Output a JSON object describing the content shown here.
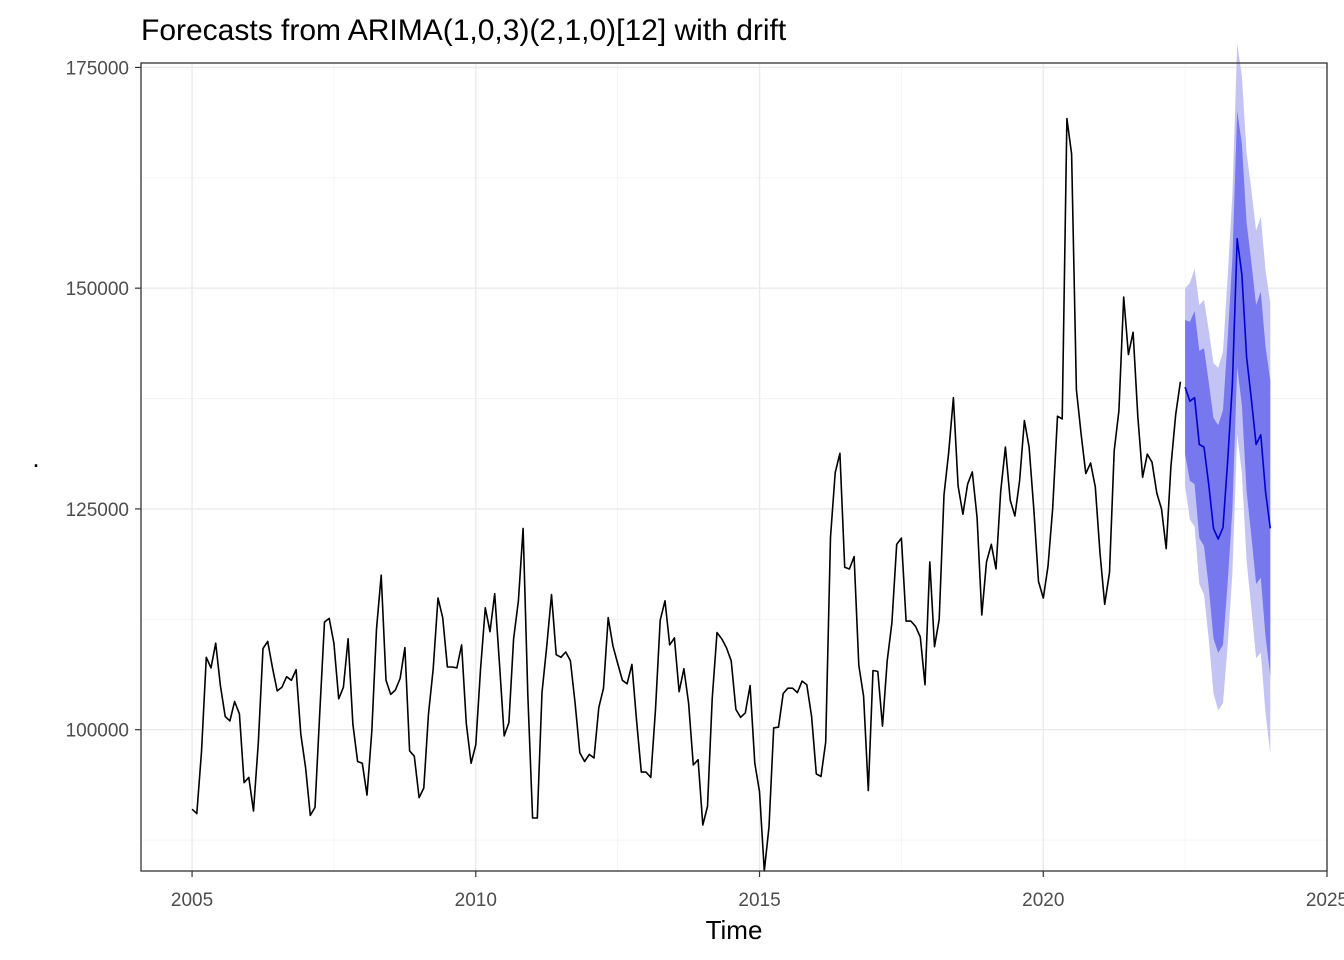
{
  "chart_data": {
    "type": "line",
    "title": "Forecasts from ARIMA(1,0,3)(2,1,0)[12] with drift",
    "xlabel": "Time",
    "ylabel": ".",
    "xlim": [
      2004.1,
      2025
    ],
    "ylim": [
      84000,
      175500
    ],
    "x_ticks": [
      2005,
      2010,
      2015,
      2020,
      2025
    ],
    "x_tick_labels": [
      "2005",
      "2010",
      "2015",
      "2020",
      "2025"
    ],
    "y_ticks": [
      100000,
      125000,
      150000,
      175000
    ],
    "y_tick_labels": [
      "100000",
      "125000",
      "150000",
      "175000"
    ],
    "grid": true,
    "colors": {
      "observed": "#000000",
      "forecast": "#0000cc",
      "band80": "#7777ee",
      "band95": "#c4c4f4"
    },
    "observed": {
      "start": 2005.0,
      "frequency": 12,
      "values": [
        91000,
        90500,
        97500,
        108200,
        107000,
        109800,
        105000,
        101500,
        101000,
        103200,
        101800,
        94000,
        94600,
        90800,
        98500,
        109200,
        110000,
        107000,
        104400,
        104800,
        106000,
        105600,
        106800,
        99500,
        95700,
        90300,
        91200,
        102000,
        112200,
        112600,
        109800,
        103500,
        104800,
        110300,
        100600,
        96400,
        96200,
        92600,
        99800,
        111400,
        117500,
        105600,
        104000,
        104500,
        105800,
        109300,
        97600,
        97000,
        92300,
        93400,
        101800,
        106900,
        114900,
        112700,
        107100,
        107100,
        107000,
        109600,
        100700,
        96200,
        98300,
        106800,
        113800,
        111100,
        115400,
        107600,
        99300,
        100800,
        110300,
        114600,
        122800,
        104000,
        90000,
        90000,
        104200,
        109400,
        115300,
        108500,
        108200,
        108800,
        107800,
        103000,
        97400,
        96400,
        97200,
        96800,
        102500,
        104700,
        112700,
        109500,
        107500,
        105600,
        105200,
        107400,
        101000,
        95200,
        95200,
        94600,
        102300,
        112400,
        114600,
        109600,
        110400,
        104300,
        106900,
        103000,
        96000,
        96600,
        89200,
        91300,
        103500,
        111000,
        110300,
        109300,
        107800,
        102300,
        101400,
        101900,
        105000,
        96200,
        93000,
        84000,
        89000,
        100200,
        100300,
        104100,
        104700,
        104700,
        104200,
        105500,
        105100,
        101500,
        95000,
        94700,
        98600,
        121800,
        129100,
        131300,
        118400,
        118200,
        119600,
        107300,
        103800,
        93100,
        106700,
        106600,
        100400,
        107800,
        112100,
        121000,
        121700,
        112300,
        112300,
        111700,
        110500,
        105100,
        119000,
        109400,
        112500,
        126600,
        131400,
        137600,
        127600,
        124400,
        127800,
        129200,
        124000,
        113000,
        119000,
        121000,
        118200,
        127000,
        132000,
        126000,
        124200,
        128200,
        135000,
        132000,
        125000,
        116800,
        114900,
        118500,
        125100,
        135500,
        135200,
        169200,
        165200,
        138500,
        133500,
        129000,
        130200,
        127500,
        120000,
        114200,
        117800,
        131600,
        136100,
        149000,
        142500,
        145000,
        135500,
        128600,
        131200,
        130300,
        126800,
        125000,
        120500,
        129800,
        135700,
        139400
      ]
    },
    "forecast": {
      "start": 2022.5,
      "frequency": 12,
      "mean": [
        138800,
        137200,
        137600,
        132300,
        132000,
        127700,
        122800,
        121600,
        122900,
        130500,
        139200,
        155600,
        151500,
        142200,
        137500,
        132300,
        133400,
        127000,
        122800
      ],
      "lo80": [
        131200,
        128200,
        127800,
        121700,
        120800,
        116100,
        110300,
        108700,
        109600,
        116700,
        125000,
        141100,
        136700,
        127000,
        122000,
        116500,
        117200,
        110600,
        106100
      ],
      "hi80": [
        146400,
        146200,
        147400,
        142900,
        143200,
        139300,
        135300,
        134500,
        136200,
        144300,
        153400,
        170100,
        166300,
        157400,
        153000,
        148100,
        149600,
        143400,
        139500
      ],
      "lo95": [
        127600,
        123800,
        123000,
        116500,
        115300,
        110200,
        104100,
        102200,
        103000,
        109600,
        117700,
        133500,
        129000,
        119100,
        113800,
        108100,
        108700,
        101900,
        97300
      ],
      "hi95": [
        150000,
        150600,
        152200,
        148100,
        148700,
        145200,
        141500,
        141000,
        142800,
        151400,
        160700,
        177700,
        174000,
        165300,
        161200,
        156500,
        158100,
        152100,
        148300
      ]
    }
  }
}
